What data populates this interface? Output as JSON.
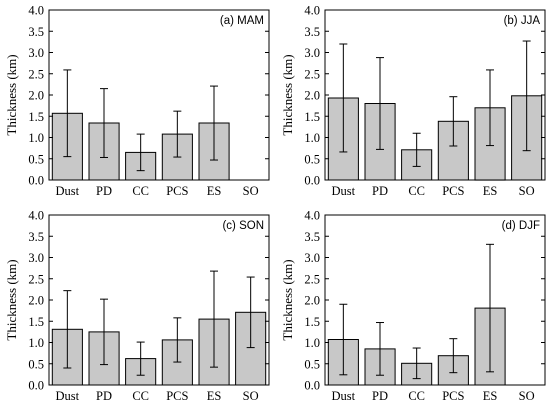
{
  "chart_data": [
    {
      "type": "bar",
      "title": "(a) MAM",
      "ylabel": "Thickness (km)",
      "categories": [
        "Dust",
        "PD",
        "CC",
        "PCS",
        "ES",
        "SO"
      ],
      "values": [
        1.57,
        1.34,
        0.65,
        1.08,
        1.34,
        0
      ],
      "errors": [
        1.02,
        0.81,
        0.43,
        0.54,
        0.87,
        0
      ],
      "ylim": [
        0,
        4
      ],
      "yticks": [
        "0.0",
        "0.5",
        "1.0",
        "1.5",
        "2.0",
        "2.5",
        "3.0",
        "3.5",
        "4.0"
      ]
    },
    {
      "type": "bar",
      "title": "(b) JJA",
      "ylabel": "Thickness (km)",
      "categories": [
        "Dust",
        "PD",
        "CC",
        "PCS",
        "ES",
        "SO"
      ],
      "values": [
        1.93,
        1.8,
        0.71,
        1.38,
        1.7,
        1.98
      ],
      "errors": [
        1.27,
        1.08,
        0.39,
        0.58,
        0.89,
        1.29
      ],
      "ylim": [
        0,
        4
      ],
      "yticks": [
        "0.0",
        "0.5",
        "1.0",
        "1.5",
        "2.0",
        "2.5",
        "3.0",
        "3.5",
        "4.0"
      ]
    },
    {
      "type": "bar",
      "title": "(c) SON",
      "ylabel": "Thickness (km)",
      "categories": [
        "Dust",
        "PD",
        "CC",
        "PCS",
        "ES",
        "SO"
      ],
      "values": [
        1.31,
        1.25,
        0.62,
        1.06,
        1.55,
        1.71
      ],
      "errors": [
        0.91,
        0.77,
        0.39,
        0.52,
        1.13,
        0.83
      ],
      "ylim": [
        0,
        4
      ],
      "yticks": [
        "0.0",
        "0.5",
        "1.0",
        "1.5",
        "2.0",
        "2.5",
        "3.0",
        "3.5",
        "4.0"
      ]
    },
    {
      "type": "bar",
      "title": "(d) DJF",
      "ylabel": "Thickness (km)",
      "categories": [
        "Dust",
        "PD",
        "CC",
        "PCS",
        "ES",
        "SO"
      ],
      "values": [
        1.07,
        0.85,
        0.51,
        0.69,
        1.81,
        0
      ],
      "errors": [
        0.83,
        0.62,
        0.36,
        0.4,
        1.5,
        0
      ],
      "ylim": [
        0,
        4
      ],
      "yticks": [
        "0.0",
        "0.5",
        "1.0",
        "1.5",
        "2.0",
        "2.5",
        "3.0",
        "3.5",
        "4.0"
      ]
    }
  ]
}
